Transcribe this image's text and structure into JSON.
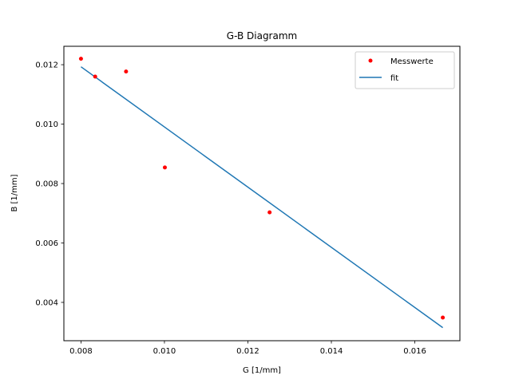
{
  "chart_data": {
    "type": "scatter",
    "title": "G-B Diagramm",
    "xlabel": "G [1/mm]",
    "ylabel": "B [1/mm]",
    "xlim": [
      0.00759,
      0.01708
    ],
    "ylim": [
      0.00271,
      0.01262
    ],
    "xticks": [
      "0.008",
      "0.010",
      "0.012",
      "0.014",
      "0.016"
    ],
    "xtick_values": [
      0.008,
      0.01,
      0.012,
      0.014,
      0.016
    ],
    "yticks": [
      "0.004",
      "0.006",
      "0.008",
      "0.010",
      "0.012"
    ],
    "ytick_values": [
      0.004,
      0.006,
      0.008,
      0.01,
      0.012
    ],
    "series": [
      {
        "name": "Messwerte",
        "kind": "points",
        "color": "#ff0000",
        "x": [
          0.008,
          0.00834,
          0.00908,
          0.01001,
          0.01252,
          0.01667
        ],
        "y": [
          0.0122,
          0.0116,
          0.01177,
          0.00854,
          0.00703,
          0.00349
        ]
      },
      {
        "name": "fit",
        "kind": "line",
        "color": "#1f77b4",
        "x": [
          0.008,
          0.01667
        ],
        "y": [
          0.01193,
          0.00315
        ]
      }
    ],
    "legend": {
      "position": "top-right",
      "entries": [
        "Messwerte",
        "fit"
      ]
    }
  }
}
